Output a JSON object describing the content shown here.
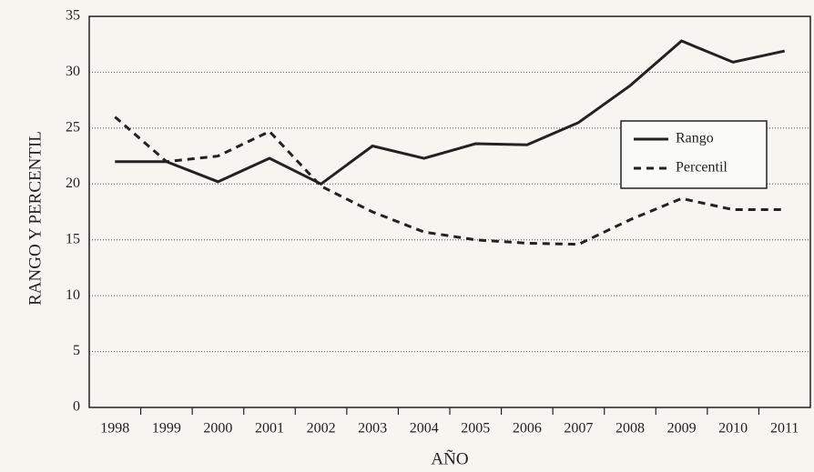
{
  "chart_data": {
    "type": "line",
    "ylabel": "RANGO Y PERCENTIL",
    "xlabel": "AÑO",
    "categories": [
      "1998",
      "1999",
      "2000",
      "2001",
      "2002",
      "2003",
      "2004",
      "2005",
      "2006",
      "2007",
      "2008",
      "2009",
      "2010",
      "2011"
    ],
    "series": [
      {
        "name": "Rango",
        "color": "#222222",
        "dash": "solid",
        "values": [
          22,
          22,
          20.2,
          22.3,
          20,
          23.4,
          22.3,
          23.6,
          23.5,
          25.5,
          28.8,
          32.8,
          30.9,
          31.9
        ]
      },
      {
        "name": "Percentil",
        "color": "#222222",
        "dash": "dashed",
        "values": [
          26,
          22,
          22.5,
          24.7,
          19.8,
          17.5,
          15.7,
          15.0,
          14.7,
          14.6,
          16.8,
          18.7,
          17.7,
          17.7
        ]
      }
    ],
    "ylim": [
      0,
      35
    ],
    "yticks": [
      0,
      5,
      10,
      15,
      20,
      25,
      30,
      35
    ],
    "grid": true,
    "legend": "right"
  }
}
